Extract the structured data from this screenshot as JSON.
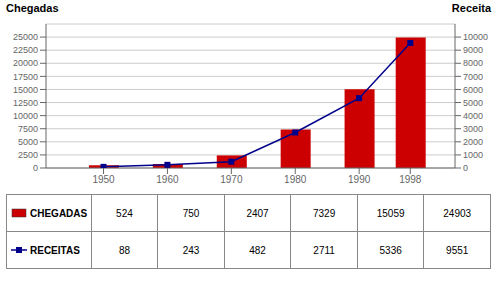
{
  "chart_data": {
    "type": "bar",
    "x": [
      1950,
      1960,
      1970,
      1980,
      1990,
      1998
    ],
    "xlim": [
      1941,
      2005
    ],
    "xticks": [
      1950,
      1960,
      1970,
      1980,
      1990,
      1998
    ],
    "ylim": [
      0,
      27500
    ],
    "yticks": [
      0,
      2500,
      5000,
      7500,
      10000,
      12500,
      15000,
      17500,
      20000,
      22500,
      25000
    ],
    "y2lim": [
      0,
      11000
    ],
    "y2ticks": [
      0,
      1000,
      2000,
      3000,
      4000,
      5000,
      6000,
      7000,
      8000,
      9000,
      10000
    ],
    "y_label": "Chegadas",
    "y2_label": "Receita",
    "grid": true,
    "legend": "bottom",
    "series": [
      {
        "name": "CHEGADAS",
        "type": "bar",
        "color": "#cc0000",
        "values": [
          524,
          750,
          2407,
          7329,
          15059,
          24903
        ]
      },
      {
        "name": "RECEITAS",
        "type": "line",
        "axis": "y2",
        "color": "#00008B",
        "marker": "square",
        "values": [
          88,
          243,
          482,
          2711,
          5336,
          9551
        ]
      }
    ]
  }
}
